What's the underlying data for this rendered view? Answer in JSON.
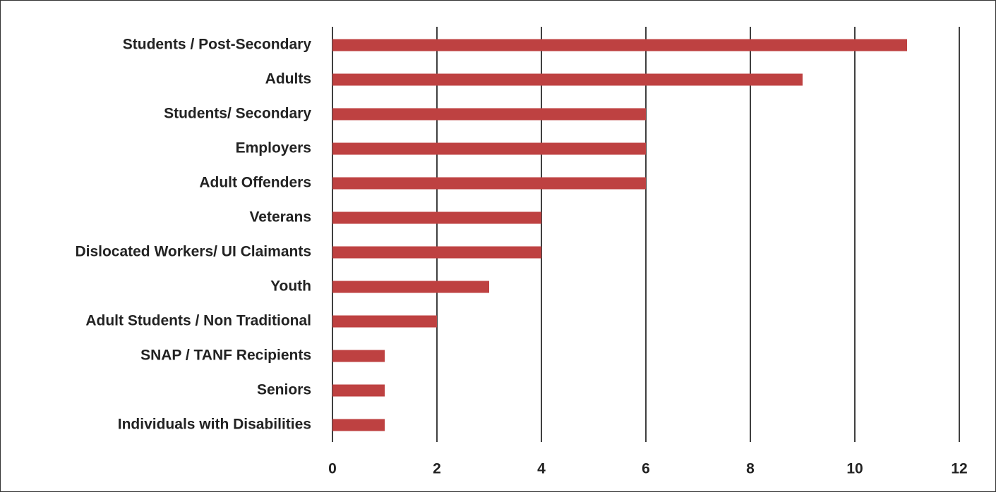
{
  "chart_data": {
    "type": "bar",
    "orientation": "horizontal",
    "categories": [
      "Students / Post-Secondary",
      "Adults",
      "Students/ Secondary",
      "Employers",
      "Adult Offenders",
      "Veterans",
      "Dislocated Workers/ UI Claimants",
      "Youth",
      "Adult Students / Non Traditional",
      "SNAP / TANF Recipients",
      "Seniors",
      "Individuals with Disabilities"
    ],
    "values": [
      11,
      9,
      6,
      6,
      6,
      4,
      4,
      3,
      2,
      1,
      1,
      1
    ],
    "color": "#be4141",
    "xlim": [
      0,
      12
    ],
    "xticks": [
      0,
      2,
      4,
      6,
      8,
      10,
      12
    ],
    "grid": true
  }
}
